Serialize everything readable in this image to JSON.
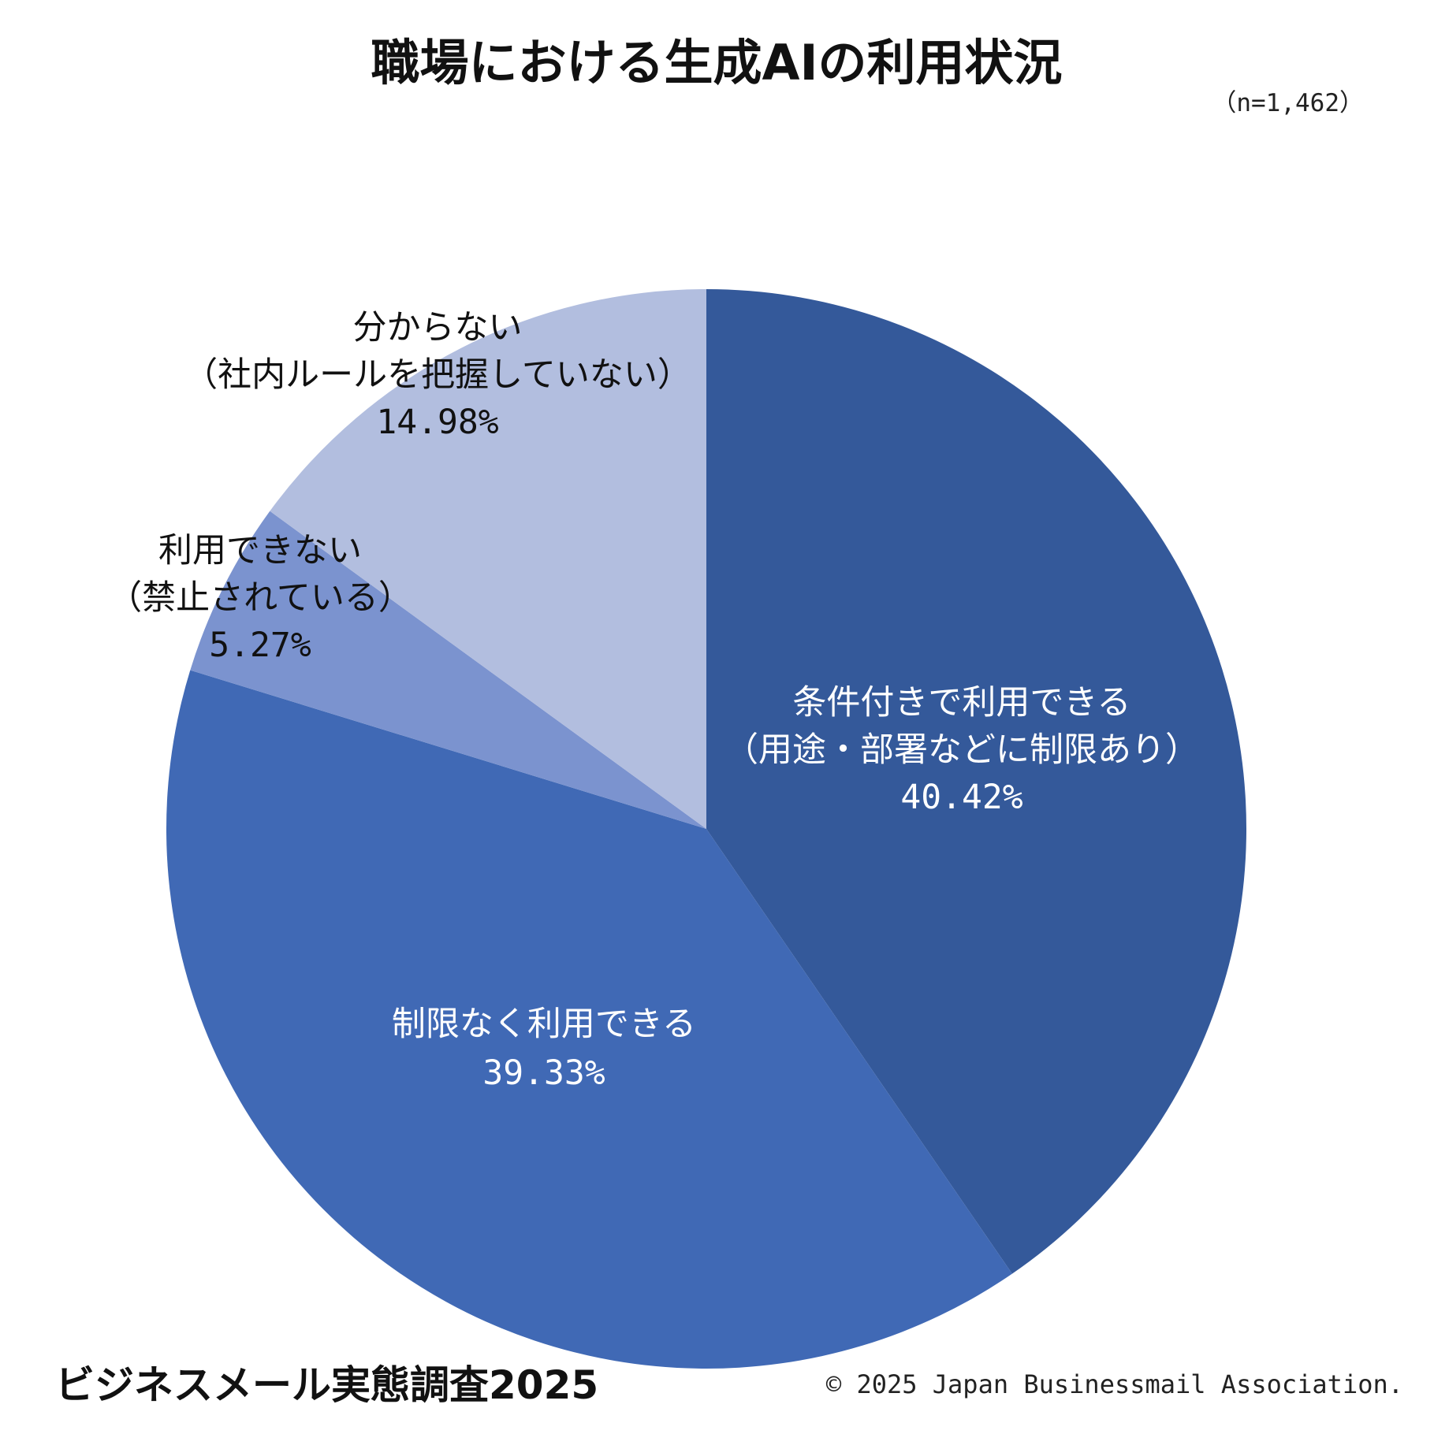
{
  "header": {
    "title": "職場における生成AIの利用状況",
    "sample_size": "（n=1,462）"
  },
  "footer": {
    "survey_name": "ビジネスメール実態調査2025",
    "copyright": "© 2025 Japan Businessmail Association."
  },
  "colors": {
    "conditional": "#34599a",
    "unrestricted": "#4069b5",
    "prohibited": "#7b93cf",
    "unknown": "#b2bedf",
    "label_on_dark": "#ffffff",
    "label_on_light": "#111111"
  },
  "chart_data": {
    "type": "pie",
    "title": "職場における生成AIの利用状況",
    "start": "12 o'clock",
    "direction": "clockwise",
    "slices": [
      {
        "key": "conditional",
        "label_lines": [
          "条件付きで利用できる",
          "（用途・部署などに制限あり）"
        ],
        "value": 40.42,
        "value_label": "40.42%",
        "color": "#34599a",
        "label_position": "inside"
      },
      {
        "key": "unrestricted",
        "label_lines": [
          "制限なく利用できる"
        ],
        "value": 39.33,
        "value_label": "39.33%",
        "color": "#4069b5",
        "label_position": "inside"
      },
      {
        "key": "prohibited",
        "label_lines": [
          "利用できない",
          "（禁止されている）"
        ],
        "value": 5.27,
        "value_label": "5.27%",
        "color": "#7b93cf",
        "label_position": "outside"
      },
      {
        "key": "unknown",
        "label_lines": [
          "分からない",
          "（社内ルールを把握していない）"
        ],
        "value": 14.98,
        "value_label": "14.98%",
        "color": "#b2bedf",
        "label_position": "inside"
      }
    ]
  }
}
